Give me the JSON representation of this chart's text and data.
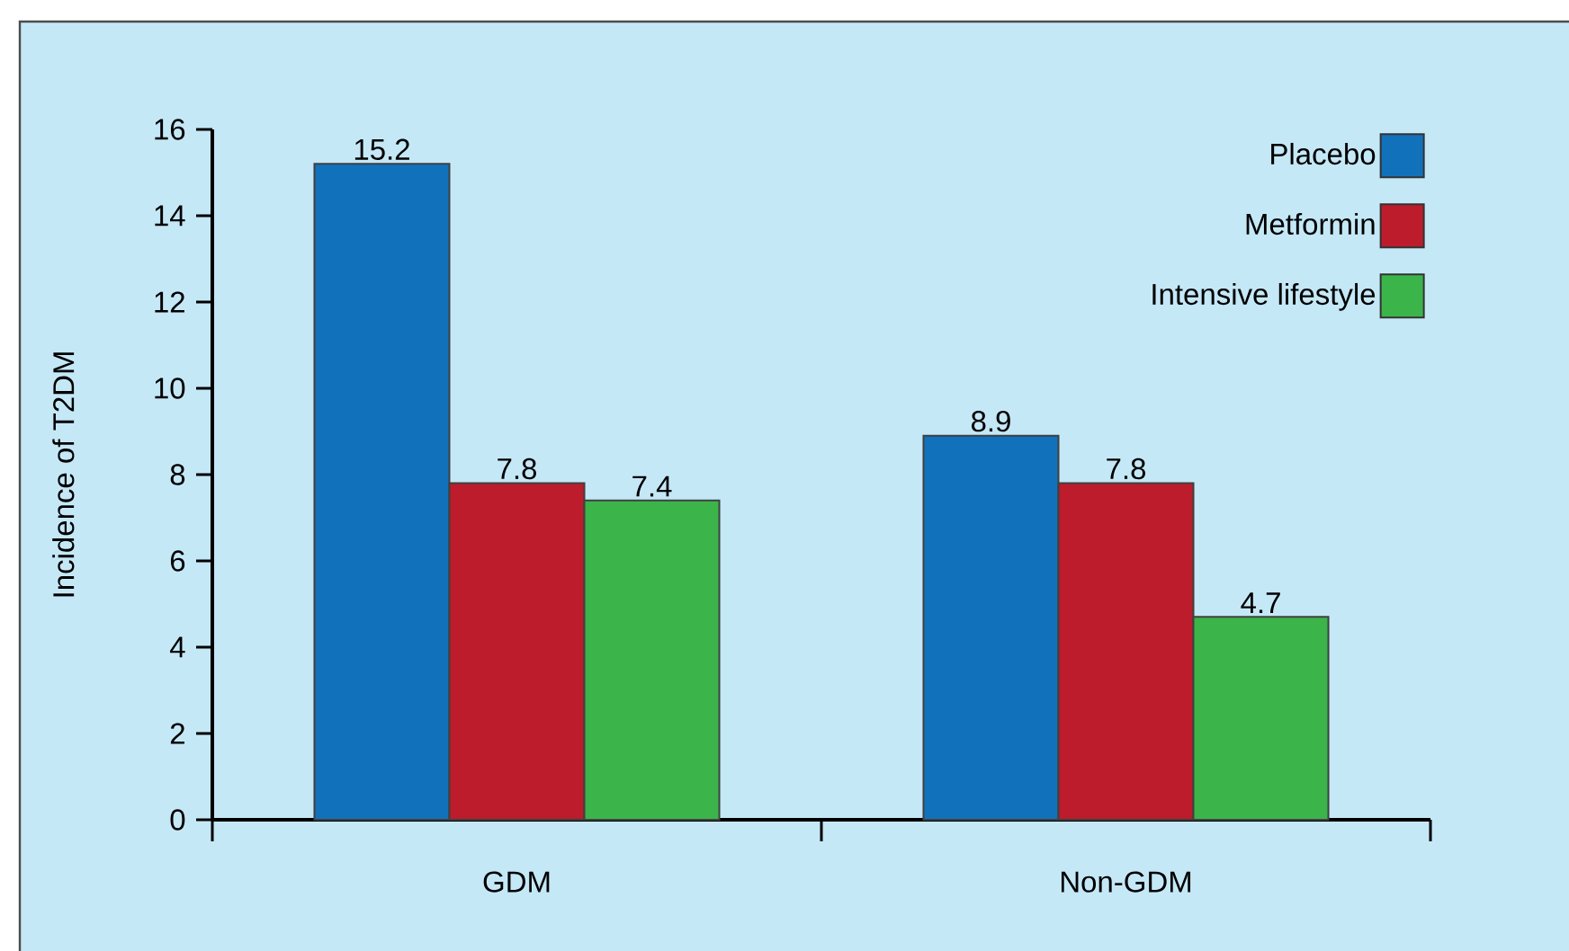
{
  "chart_data": {
    "type": "bar",
    "ylabel": "Incidence of T2DM",
    "categories": [
      "GDM",
      "Non-GDM"
    ],
    "series": [
      {
        "name": "Placebo",
        "color": "#1172bb",
        "values": [
          15.2,
          8.9
        ]
      },
      {
        "name": "Metformin",
        "color": "#bc1c2c",
        "values": [
          7.8,
          7.8
        ]
      },
      {
        "name": "Intensive lifestyle",
        "color": "#3bb54a",
        "values": [
          7.4,
          4.7
        ]
      }
    ],
    "ylim": [
      0,
      16
    ],
    "yticks": [
      0,
      2,
      4,
      6,
      8,
      10,
      12,
      14,
      16
    ],
    "data_labels": true,
    "legend": "top right",
    "grid": false
  }
}
